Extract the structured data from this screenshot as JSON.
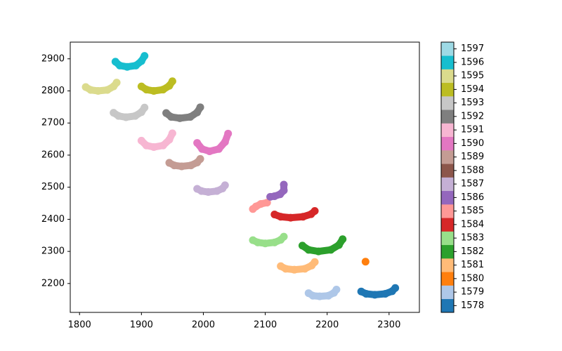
{
  "chart_data": {
    "type": "scatter",
    "xlim": [
      1785,
      2349
    ],
    "ylim": [
      2110,
      2952
    ],
    "xticks": [
      1800,
      1900,
      2000,
      2100,
      2200,
      2300
    ],
    "yticks": [
      2200,
      2300,
      2400,
      2500,
      2600,
      2700,
      2800,
      2900
    ],
    "colorbar": {
      "lim": [
        1577.5,
        1597.5
      ],
      "ticks": [
        1578,
        1579,
        1580,
        1581,
        1582,
        1583,
        1584,
        1585,
        1586,
        1587,
        1588,
        1589,
        1590,
        1591,
        1592,
        1593,
        1594,
        1595,
        1596,
        1597
      ],
      "colors": [
        "#1f77b4",
        "#aec7e8",
        "#ff7f0e",
        "#ffbb78",
        "#2ca02c",
        "#98df8a",
        "#d62728",
        "#ff9896",
        "#9467bd",
        "#c5b0d5",
        "#8c564b",
        "#c49c94",
        "#e377c2",
        "#f7b6d2",
        "#7f7f7f",
        "#c7c7c7",
        "#bcbd22",
        "#dbdb8d",
        "#17becf",
        "#9edae5"
      ]
    },
    "series": [
      {
        "c": 1578,
        "x": [
          2255,
          2263,
          2277,
          2294,
          2305,
          2310
        ],
        "y": [
          2175,
          2168,
          2165,
          2168,
          2176,
          2186
        ]
      },
      {
        "c": 1579,
        "x": [
          2170,
          2177,
          2188,
          2202,
          2211,
          2215
        ],
        "y": [
          2170,
          2162,
          2160,
          2162,
          2171,
          2181
        ]
      },
      {
        "c": 1580,
        "x": [
          2262
        ],
        "y": [
          2268
        ]
      },
      {
        "c": 1581,
        "x": [
          2125,
          2133,
          2147,
          2164,
          2175,
          2180
        ],
        "y": [
          2254,
          2246,
          2243,
          2246,
          2256,
          2267
        ]
      },
      {
        "c": 1582,
        "x": [
          2160,
          2170,
          2186,
          2206,
          2219,
          2225
        ],
        "y": [
          2318,
          2305,
          2300,
          2305,
          2320,
          2338
        ]
      },
      {
        "c": 1583,
        "x": [
          2080,
          2088,
          2100,
          2115,
          2125,
          2130
        ],
        "y": [
          2335,
          2328,
          2325,
          2328,
          2336,
          2346
        ]
      },
      {
        "c": 1584,
        "x": [
          2115,
          2125,
          2141,
          2161,
          2174,
          2180
        ],
        "y": [
          2415,
          2408,
          2405,
          2408,
          2416,
          2426
        ]
      },
      {
        "c": 1585,
        "x": [
          2080,
          2085,
          2093,
          2103
        ],
        "y": [
          2432,
          2440,
          2448,
          2452
        ]
      },
      {
        "c": 1586,
        "x": [
          2108,
          2115,
          2124,
          2130,
          2130
        ],
        "y": [
          2470,
          2472,
          2478,
          2490,
          2508
        ]
      },
      {
        "c": 1587,
        "x": [
          1990,
          1997,
          2008,
          2022,
          2031,
          2035
        ],
        "y": [
          2495,
          2488,
          2485,
          2488,
          2496,
          2506
        ]
      },
      {
        "c": 1589,
        "x": [
          1945,
          1953,
          1965,
          1980,
          1990,
          1995
        ],
        "y": [
          2576,
          2568,
          2565,
          2568,
          2577,
          2588
        ]
      },
      {
        "c": 1590,
        "x": [
          1990,
          1998,
          2010,
          2025,
          2035,
          2040
        ],
        "y": [
          2638,
          2619,
          2612,
          2619,
          2641,
          2667
        ]
      },
      {
        "c": 1591,
        "x": [
          1900,
          1908,
          1920,
          1935,
          1945,
          1950
        ],
        "y": [
          2645,
          2630,
          2625,
          2630,
          2648,
          2668
        ]
      },
      {
        "c": 1592,
        "x": [
          1940,
          1948,
          1962,
          1979,
          1990,
          1995
        ],
        "y": [
          2731,
          2719,
          2715,
          2719,
          2733,
          2749
        ]
      },
      {
        "c": 1593,
        "x": [
          1855,
          1863,
          1875,
          1890,
          1900,
          1905
        ],
        "y": [
          2732,
          2722,
          2718,
          2722,
          2734,
          2748
        ]
      },
      {
        "c": 1594,
        "x": [
          1900,
          1908,
          1920,
          1935,
          1945,
          1950
        ],
        "y": [
          2814,
          2804,
          2800,
          2804,
          2816,
          2830
        ]
      },
      {
        "c": 1595,
        "x": [
          1810,
          1818,
          1830,
          1845,
          1855,
          1860
        ],
        "y": [
          2812,
          2803,
          2800,
          2803,
          2814,
          2826
        ]
      },
      {
        "c": 1596,
        "x": [
          1858,
          1865,
          1877,
          1891,
          1900,
          1905
        ],
        "y": [
          2891,
          2879,
          2875,
          2879,
          2893,
          2909
        ]
      }
    ]
  }
}
